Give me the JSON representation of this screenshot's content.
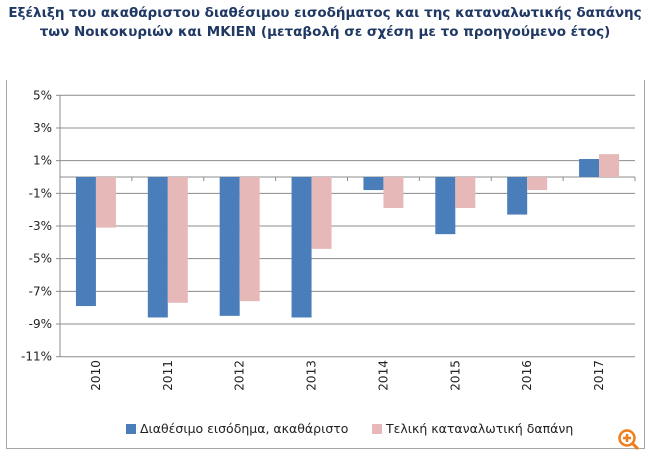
{
  "chart_data": {
    "type": "bar",
    "title_lines": [
      "Εξέλιξη του ακαθάριστου διαθέσιμου εισοδήματος και της καταναλωτικής δαπάνης",
      "των Νοικοκυριών και ΜΚΙΕΝ (μεταβολή σε σχέση με το προηγούμενο έτος)"
    ],
    "categories": [
      "2010",
      "2011",
      "2012",
      "2013",
      "2014",
      "2015",
      "2016",
      "2017"
    ],
    "series": [
      {
        "name": "Διαθέσιμο εισόδημα, ακαθάριστο",
        "color": "#4a7ebb",
        "values": [
          -7.9,
          -8.6,
          -8.5,
          -8.6,
          -0.8,
          -3.5,
          -2.3,
          1.1
        ]
      },
      {
        "name": "Τελική καταναλωτική δαπάνη",
        "color": "#e6b9b8",
        "values": [
          -3.1,
          -7.7,
          -7.6,
          -4.4,
          -1.9,
          -1.9,
          -0.8,
          1.4
        ]
      }
    ],
    "yticks": [
      "5%",
      "3%",
      "1%",
      "-1%",
      "-3%",
      "-5%",
      "-7%",
      "-9%",
      "-11%"
    ],
    "ylim": [
      -11,
      5
    ],
    "ytick_values": [
      5,
      3,
      1,
      -1,
      -3,
      -5,
      -7,
      -9,
      -11
    ],
    "grid": true,
    "legend_position": "bottom"
  },
  "zoom_icon": {
    "name": "zoom-in-icon",
    "color": "#f07d1a"
  }
}
